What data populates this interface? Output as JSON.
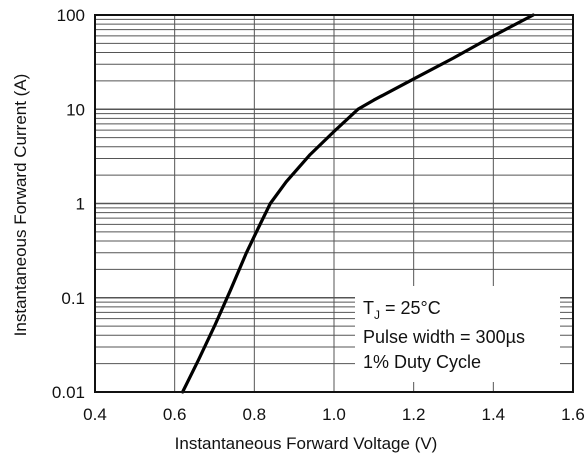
{
  "chart_data": {
    "type": "line",
    "title": "",
    "xlabel": "Instantaneous Forward Voltage (V)",
    "ylabel": "Instantaneous Forward Current (A)",
    "xlim": [
      0.4,
      1.6
    ],
    "ylim": [
      0.01,
      100
    ],
    "yscale": "log",
    "xticks": [
      0.4,
      0.6,
      0.8,
      1.0,
      1.2,
      1.4,
      1.6
    ],
    "xtick_labels": [
      "0.4",
      "0.6",
      "0.8",
      "1.0",
      "1.2",
      "1.4",
      "1.6"
    ],
    "yticks": [
      0.01,
      0.1,
      1,
      10,
      100
    ],
    "ytick_labels": [
      "0.01",
      "0.1",
      "1",
      "10",
      "100"
    ],
    "grid": true,
    "series": [
      {
        "x": [
          0.62,
          0.66,
          0.7,
          0.74,
          0.78,
          0.81,
          0.84,
          0.88,
          0.94,
          1.0,
          1.06,
          1.1,
          1.2,
          1.3,
          1.4,
          1.5
        ],
        "y": [
          0.01,
          0.022,
          0.05,
          0.12,
          0.3,
          0.55,
          1.0,
          1.7,
          3.3,
          5.8,
          10,
          12.5,
          21,
          35,
          60,
          100
        ]
      }
    ],
    "annotations": [
      {
        "parts": [
          "T",
          "J",
          " = 25°C"
        ]
      },
      {
        "text": "Pulse width = 300µs"
      },
      {
        "text": "1% Duty Cycle"
      }
    ],
    "colors": {
      "grid": "#555555",
      "line": "#000000",
      "frame": "#111111"
    }
  }
}
